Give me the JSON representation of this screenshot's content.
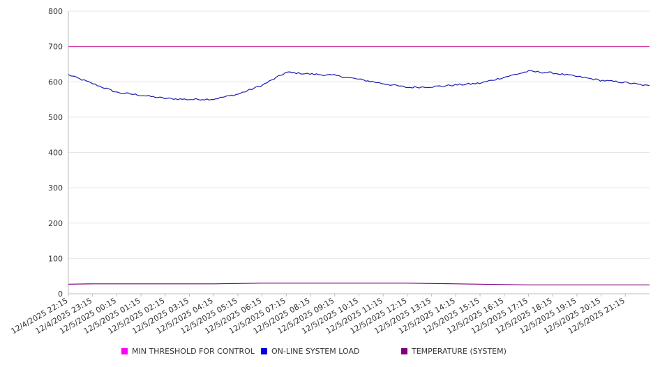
{
  "chart_data": {
    "type": "line",
    "title": "",
    "xlabel": "",
    "ylabel": "",
    "ylim": [
      0,
      800
    ],
    "yticks": [
      "0",
      "100",
      "200",
      "300",
      "400",
      "500",
      "600",
      "700",
      "800"
    ],
    "xticks": [
      "12/4/2025 22:15",
      "12/4/2025 23:15",
      "12/5/2025 00:15",
      "12/5/2025 01:15",
      "12/5/2025 02:15",
      "12/5/2025 03:15",
      "12/5/2025 04:15",
      "12/5/2025 05:15",
      "12/5/2025 06:15",
      "12/5/2025 07:15",
      "12/5/2025 08:15",
      "12/5/2025 09:15",
      "12/5/2025 10:15",
      "12/5/2025 11:15",
      "12/5/2025 12:15",
      "12/5/2025 13:15",
      "12/5/2025 14:15",
      "12/5/2025 15:15",
      "12/5/2025 16:15",
      "12/5/2025 17:15",
      "12/5/2025 18:15",
      "12/5/2025 19:15",
      "12/5/2025 20:15",
      "12/5/2025 21:15"
    ],
    "x": [
      "12/4/2025 22:15",
      "12/4/2025 23:15",
      "12/5/2025 00:15",
      "12/5/2025 01:15",
      "12/5/2025 02:15",
      "12/5/2025 03:15",
      "12/5/2025 04:15",
      "12/5/2025 05:15",
      "12/5/2025 06:15",
      "12/5/2025 07:15",
      "12/5/2025 08:15",
      "12/5/2025 09:15",
      "12/5/2025 10:15",
      "12/5/2025 11:15",
      "12/5/2025 12:15",
      "12/5/2025 13:15",
      "12/5/2025 14:15",
      "12/5/2025 15:15",
      "12/5/2025 16:15",
      "12/5/2025 17:15",
      "12/5/2025 18:15",
      "12/5/2025 19:15",
      "12/5/2025 20:15",
      "12/5/2025 21:15",
      "12/5/2025 22:00"
    ],
    "grid": true,
    "legend_position": "bottom",
    "series": [
      {
        "name": "MIN THRESHOLD FOR CONTROL",
        "color": "#ff00ff",
        "line_color": "#d23a9c",
        "values": [
          700,
          700,
          700,
          700,
          700,
          700,
          700,
          700,
          700,
          700,
          700,
          700,
          700,
          700,
          700,
          700,
          700,
          700,
          700,
          700,
          700,
          700,
          700,
          700,
          700
        ]
      },
      {
        "name": "ON-LINE SYSTEM LOAD",
        "color": "#0000dd",
        "line_color": "#1c1cb4",
        "values": [
          620,
          595,
          570,
          562,
          553,
          550,
          551,
          565,
          590,
          627,
          622,
          618,
          607,
          595,
          584,
          586,
          591,
          596,
          613,
          630,
          625,
          615,
          604,
          598,
          588
        ]
      },
      {
        "name": "TEMPERATURE (SYSTEM)",
        "color": "#800080",
        "line_color": "#800080",
        "values": [
          27,
          28,
          28,
          28,
          28,
          28,
          28,
          29,
          30,
          30,
          30,
          30,
          30,
          30,
          30,
          29,
          28,
          27,
          26,
          25,
          25,
          25,
          25,
          25,
          25
        ]
      }
    ]
  }
}
